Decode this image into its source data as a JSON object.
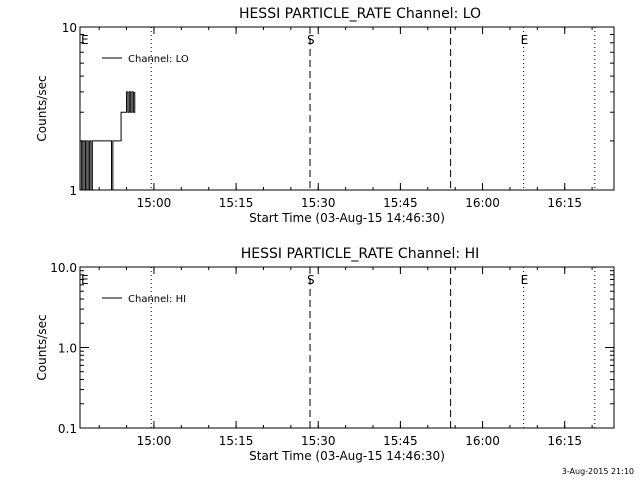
{
  "chart_data": [
    {
      "type": "line",
      "title": "HESSI PARTICLE_RATE Channel: LO",
      "xlabel": "Start Time (03-Aug-15 14:46:30)",
      "ylabel": "Counts/sec",
      "yscale": "log",
      "ylim": [
        1,
        10
      ],
      "ytick_labels": [
        "1",
        "10"
      ],
      "xlim": [
        "14:46:30",
        "16:24:00"
      ],
      "xtick_labels": [
        "15:00",
        "15:15",
        "15:30",
        "15:45",
        "16:00",
        "16:15"
      ],
      "legend": {
        "placement": "top-left",
        "entries": [
          "Channel: LO"
        ]
      },
      "markers": [
        {
          "label": "E",
          "time": "14:46:30",
          "style": "dotted"
        },
        {
          "label": "",
          "time": "14:59:30",
          "style": "dotted"
        },
        {
          "label": "S",
          "time": "15:28:30",
          "style": "dashed"
        },
        {
          "label": "",
          "time": "15:54:10",
          "style": "dashed"
        },
        {
          "label": "E",
          "time": "16:07:30",
          "style": "dotted"
        },
        {
          "label": "",
          "time": "16:20:30",
          "style": "dotted"
        }
      ],
      "series": [
        {
          "name": "Channel: LO",
          "x": [
            "14:46:30",
            "14:46:45",
            "14:47:00",
            "14:47:15",
            "14:47:30",
            "14:47:45",
            "14:48:00",
            "14:48:15",
            "14:48:30",
            "14:48:45",
            "14:49:00",
            "14:49:15",
            "14:49:30",
            "14:50:00",
            "14:51:00",
            "14:52:00",
            "14:52:15",
            "14:52:30",
            "14:52:45",
            "14:53:00",
            "14:53:30",
            "14:54:00",
            "14:54:30",
            "14:55:00",
            "14:55:15",
            "14:55:30",
            "14:55:45",
            "14:56:00",
            "14:56:15",
            "14:56:30"
          ],
          "y": [
            1,
            2,
            1,
            2,
            1,
            2,
            1,
            2,
            1,
            2,
            2,
            2,
            2,
            2,
            2,
            2,
            1,
            2,
            2,
            2,
            2,
            3,
            3,
            4,
            3,
            4,
            3,
            4,
            3,
            4
          ]
        }
      ]
    },
    {
      "type": "line",
      "title": "HESSI PARTICLE_RATE Channel: HI",
      "xlabel": "Start Time (03-Aug-15 14:46:30)",
      "ylabel": "Counts/sec",
      "yscale": "log",
      "ylim": [
        0.1,
        10
      ],
      "ytick_labels": [
        "0.1",
        "1.0",
        "10.0"
      ],
      "xlim": [
        "14:46:30",
        "16:24:00"
      ],
      "xtick_labels": [
        "15:00",
        "15:15",
        "15:30",
        "15:45",
        "16:00",
        "16:15"
      ],
      "legend": {
        "placement": "top-left",
        "entries": [
          "Channel: HI"
        ]
      },
      "markers": [
        {
          "label": "E",
          "time": "14:46:30",
          "style": "dotted"
        },
        {
          "label": "",
          "time": "14:59:30",
          "style": "dotted"
        },
        {
          "label": "S",
          "time": "15:28:30",
          "style": "dashed"
        },
        {
          "label": "",
          "time": "15:54:10",
          "style": "dashed"
        },
        {
          "label": "E",
          "time": "16:07:30",
          "style": "dotted"
        },
        {
          "label": "",
          "time": "16:20:30",
          "style": "dotted"
        }
      ],
      "series": [
        {
          "name": "Channel: HI",
          "x": [],
          "y": []
        }
      ]
    }
  ],
  "footer": {
    "timestamp": "3-Aug-2015 21:10"
  }
}
